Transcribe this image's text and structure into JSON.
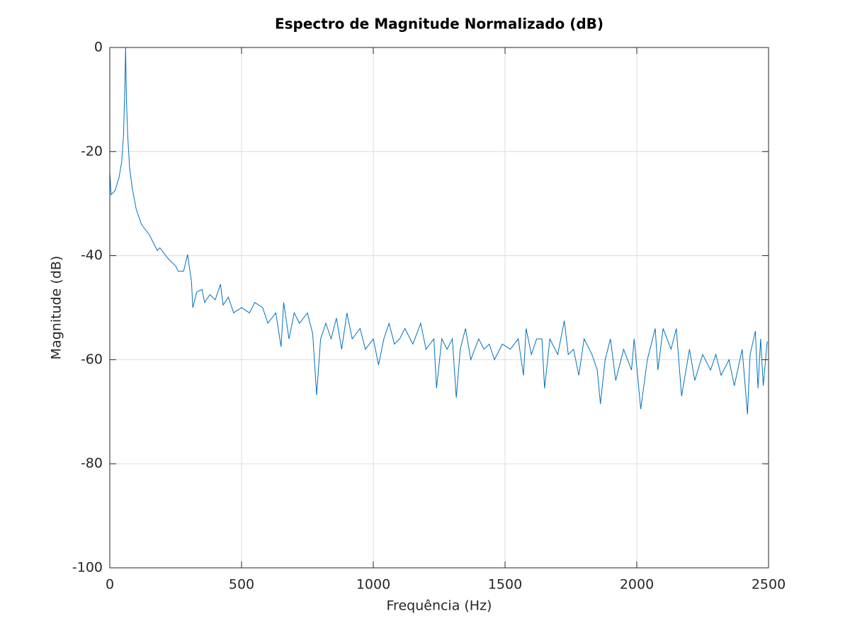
{
  "chart_data": {
    "type": "line",
    "title": "Espectro de Magnitude Normalizado (dB)",
    "x_label": "Frequência (Hz)",
    "y_label": "Magnitude (dB)",
    "xlim": [
      0,
      2500
    ],
    "ylim": [
      -100,
      0
    ],
    "xticks": [
      0,
      500,
      1000,
      1500,
      2000,
      2500
    ],
    "yticks": [
      -100,
      -80,
      -60,
      -40,
      -20,
      0
    ],
    "grid": true,
    "series": [
      {
        "color": "#0072bd",
        "x": [
          0,
          5,
          20,
          35,
          45,
          52,
          57,
          60,
          63,
          68,
          75,
          85,
          100,
          120,
          150,
          180,
          190,
          220,
          250,
          260,
          280,
          295,
          310,
          315,
          330,
          350,
          360,
          380,
          400,
          420,
          430,
          450,
          470,
          500,
          530,
          550,
          580,
          600,
          630,
          650,
          660,
          680,
          700,
          720,
          750,
          770,
          785,
          800,
          820,
          840,
          860,
          880,
          900,
          920,
          950,
          970,
          1000,
          1020,
          1040,
          1060,
          1080,
          1100,
          1120,
          1150,
          1180,
          1200,
          1230,
          1240,
          1260,
          1280,
          1300,
          1315,
          1330,
          1350,
          1370,
          1400,
          1420,
          1440,
          1460,
          1490,
          1520,
          1550,
          1570,
          1580,
          1600,
          1620,
          1640,
          1650,
          1670,
          1700,
          1725,
          1740,
          1760,
          1780,
          1800,
          1830,
          1850,
          1862,
          1880,
          1900,
          1920,
          1950,
          1980,
          1990,
          2015,
          2040,
          2070,
          2080,
          2100,
          2130,
          2150,
          2170,
          2200,
          2220,
          2250,
          2280,
          2300,
          2320,
          2350,
          2370,
          2400,
          2420,
          2430,
          2450,
          2460,
          2470,
          2480,
          2495
        ],
        "values": [
          -24,
          -28.3,
          -27.5,
          -25,
          -22,
          -17,
          -8,
          0,
          -10,
          -17,
          -23,
          -27,
          -31,
          -34,
          -36,
          -39,
          -38.5,
          -40.5,
          -42,
          -43,
          -43,
          -39.8,
          -45,
          -50,
          -47,
          -46.5,
          -49,
          -47.5,
          -48.5,
          -45.5,
          -49.5,
          -48,
          -51,
          -50,
          -51,
          -49,
          -50,
          -53,
          -51,
          -57.5,
          -49,
          -56,
          -51,
          -53,
          -51,
          -55,
          -66.8,
          -56,
          -53,
          -56,
          -52,
          -58,
          -51,
          -56,
          -54,
          -58,
          -56,
          -61,
          -56,
          -53,
          -57,
          -56,
          -54,
          -57,
          -53,
          -58,
          -56,
          -65.5,
          -56,
          -58,
          -56,
          -67.3,
          -58,
          -54,
          -60,
          -56,
          -58,
          -57,
          -60,
          -57,
          -58,
          -56,
          -63,
          -54,
          -59,
          -56,
          -56,
          -65.5,
          -56,
          -59,
          -52.5,
          -59,
          -58,
          -63,
          -56,
          -59,
          -62,
          -68.5,
          -60,
          -56,
          -64,
          -58,
          -62,
          -56,
          -69.5,
          -60,
          -54,
          -62,
          -54,
          -58,
          -54,
          -67,
          -58,
          -64,
          -59,
          -62,
          -59,
          -63,
          -60,
          -65,
          -58,
          -70.5,
          -59,
          -54.5,
          -65.5,
          -56,
          -65,
          -56.5
        ]
      }
    ]
  }
}
